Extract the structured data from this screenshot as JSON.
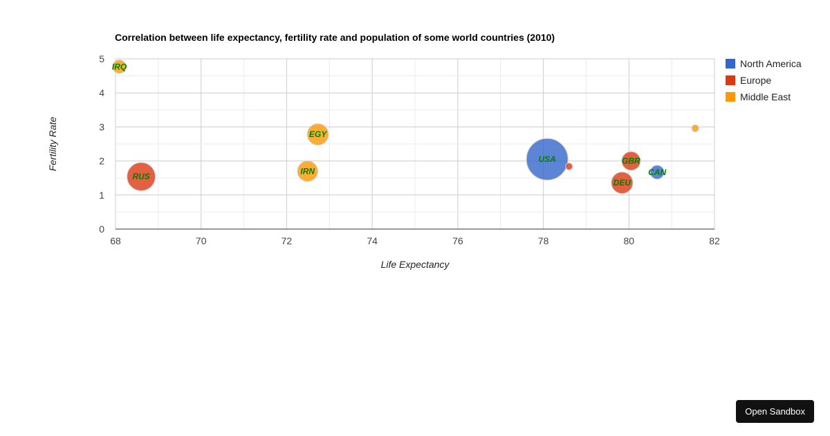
{
  "chart_data": {
    "type": "bubble",
    "title": "Correlation between life expectancy, fertility rate and population of some world countries (2010)",
    "xlabel": "Life Expectancy",
    "ylabel": "Fertility Rate",
    "xlim": [
      68,
      82
    ],
    "ylim": [
      0,
      5
    ],
    "xticks": [
      "68",
      "70",
      "72",
      "74",
      "76",
      "78",
      "80",
      "82"
    ],
    "yticks": [
      "0",
      "1",
      "2",
      "3",
      "4",
      "5"
    ],
    "grid": true,
    "legend_position": "right",
    "series": [
      {
        "name": "North America",
        "color": "#3366cc"
      },
      {
        "name": "Europe",
        "color": "#dc3912"
      },
      {
        "name": "Middle East",
        "color": "#ff9900"
      }
    ],
    "points": [
      {
        "id": "CAN",
        "x": 80.66,
        "y": 1.67,
        "group": "North America",
        "size": 33739900,
        "label_shown": true
      },
      {
        "id": "DEU",
        "x": 79.84,
        "y": 1.36,
        "group": "Europe",
        "size": 81902307,
        "label_shown": true
      },
      {
        "id": "DNK",
        "x": 78.6,
        "y": 1.84,
        "group": "Europe",
        "size": 5523095,
        "label_shown": false
      },
      {
        "id": "EGY",
        "x": 72.73,
        "y": 2.78,
        "group": "Middle East",
        "size": 79716203,
        "label_shown": true
      },
      {
        "id": "GBR",
        "x": 80.05,
        "y": 2.0,
        "group": "Europe",
        "size": 61801570,
        "label_shown": true
      },
      {
        "id": "IRN",
        "x": 72.49,
        "y": 1.7,
        "group": "Middle East",
        "size": 73137148,
        "label_shown": true
      },
      {
        "id": "IRQ",
        "x": 68.09,
        "y": 4.77,
        "group": "Middle East",
        "size": 31090763,
        "label_shown": true
      },
      {
        "id": "ISR",
        "x": 81.55,
        "y": 2.96,
        "group": "Middle East",
        "size": 7485600,
        "label_shown": false
      },
      {
        "id": "RUS",
        "x": 68.6,
        "y": 1.54,
        "group": "Europe",
        "size": 141850000,
        "label_shown": true
      },
      {
        "id": "USA",
        "x": 78.09,
        "y": 2.05,
        "group": "North America",
        "size": 307007000,
        "label_shown": true
      }
    ]
  },
  "ui": {
    "sandbox_button": "Open Sandbox"
  }
}
